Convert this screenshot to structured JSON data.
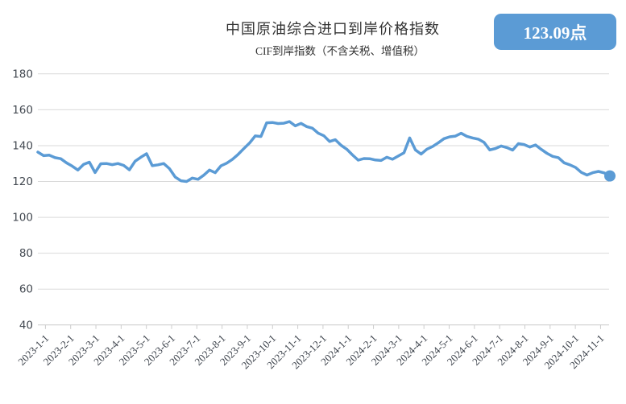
{
  "header": {
    "title": "中国原油综合进口到岸价格指数",
    "subtitle": "CIF到岸指数（不含关税、增值税）",
    "badge_value": "123.09点"
  },
  "colors": {
    "line": "#5b9bd5",
    "badge_bg": "#5b9bd5",
    "badge_text": "#ffffff",
    "grid": "#d9d9d9",
    "axis": "#cccccc",
    "y_label": "#444a52",
    "x_label": "#3d434c",
    "title_text": "#333333"
  },
  "chart_data": {
    "type": "line",
    "title": "中国原油综合进口到岸价格指数",
    "subtitle": "CIF到岸指数（不含关税、增值税）",
    "latest_value": 123.09,
    "latest_value_label": "123.09点",
    "ylim": [
      40,
      180
    ],
    "y_ticks": [
      40,
      60,
      80,
      100,
      120,
      140,
      160,
      180
    ],
    "grid": "horizontal-only",
    "legend": "none",
    "x_tick_labels": [
      "2023-1-1",
      "2023-2-1",
      "2023-3-1",
      "2023-4-1",
      "2023-5-1",
      "2023-6-1",
      "2023-7-1",
      "2023-8-1",
      "2023-9-1",
      "2023-10-1",
      "2023-11-1",
      "2023-12-1",
      "2024-1-1",
      "2024-2-1",
      "2024-3-1",
      "2024-4-1",
      "2024-5-1",
      "2024-6-1",
      "2024-7-1",
      "2024-8-1",
      "2024-9-1",
      "2024-10-1",
      "2024-11-1"
    ],
    "sampling": "weekly points from 2023-1-1 to mid-Nov 2024, last point marked with dot",
    "series": [
      {
        "name": "CIF到岸指数",
        "values": [
          136.4,
          134.4,
          134.7,
          133.3,
          132.7,
          130.4,
          128.6,
          126.4,
          129.5,
          130.8,
          125.0,
          129.9,
          130.0,
          129.4,
          130.0,
          129.0,
          126.5,
          131.3,
          133.5,
          135.5,
          128.8,
          129.3,
          130.0,
          127.2,
          122.5,
          120.4,
          120.0,
          121.9,
          121.2,
          123.5,
          126.4,
          124.9,
          128.7,
          130.2,
          132.3,
          135.1,
          138.3,
          141.4,
          145.4,
          145.1,
          152.7,
          152.9,
          152.3,
          152.5,
          153.4,
          151.0,
          152.4,
          150.6,
          149.7,
          147.0,
          145.5,
          142.3,
          143.3,
          140.2,
          138.0,
          134.8,
          131.9,
          132.8,
          132.7,
          132.0,
          131.7,
          133.5,
          132.4,
          134.2,
          136.0,
          144.3,
          137.6,
          135.3,
          138.0,
          139.5,
          141.6,
          143.9,
          144.9,
          145.3,
          146.9,
          145.2,
          144.3,
          143.6,
          141.8,
          137.6,
          138.4,
          139.8,
          138.9,
          137.5,
          141.1,
          140.6,
          139.2,
          140.4,
          137.9,
          135.7,
          134.0,
          133.3,
          130.4,
          129.3,
          127.8,
          125.1,
          123.6,
          124.9,
          125.6,
          124.8,
          123.09
        ]
      }
    ]
  }
}
